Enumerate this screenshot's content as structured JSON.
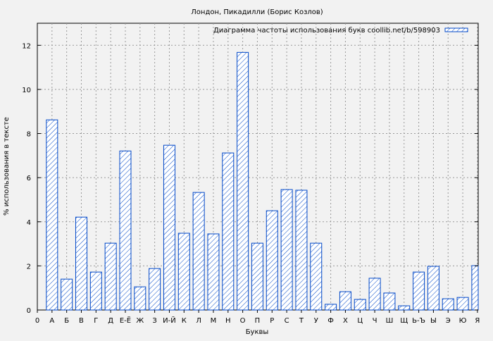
{
  "chart_data": {
    "type": "bar",
    "title": "Лондон, Пикадилли (Борис Козлов)",
    "xlabel": "Буквы",
    "ylabel": "% использования в тексте",
    "x_origin_label": "0",
    "categories": [
      "А",
      "Б",
      "В",
      "Г",
      "Д",
      "Е-Ё",
      "Ж",
      "З",
      "И-Й",
      "К",
      "Л",
      "М",
      "Н",
      "О",
      "П",
      "Р",
      "С",
      "Т",
      "У",
      "Ф",
      "Х",
      "Ц",
      "Ч",
      "Ш",
      "Щ",
      "Ь-Ъ",
      "Ы",
      "Э",
      "Ю",
      "Я"
    ],
    "series": [
      {
        "name": "Диаграмма частоты использования букв coollib.net/b/598903",
        "values": [
          8.62,
          1.4,
          4.21,
          1.72,
          3.03,
          7.21,
          1.05,
          1.88,
          7.47,
          3.48,
          5.33,
          3.45,
          7.12,
          11.68,
          3.03,
          4.5,
          5.46,
          5.43,
          3.03,
          0.26,
          0.83,
          0.48,
          1.44,
          0.77,
          0.19,
          1.72,
          1.98,
          0.51,
          0.57,
          2.01
        ]
      }
    ],
    "ylim": [
      0,
      13
    ],
    "yticks": [
      0,
      2,
      4,
      6,
      8,
      10,
      12
    ],
    "grid": true,
    "legend_position": "top-right",
    "colors": {
      "bar": "#0047c8",
      "background": "#f2f2f2",
      "grid": "#999999"
    }
  }
}
